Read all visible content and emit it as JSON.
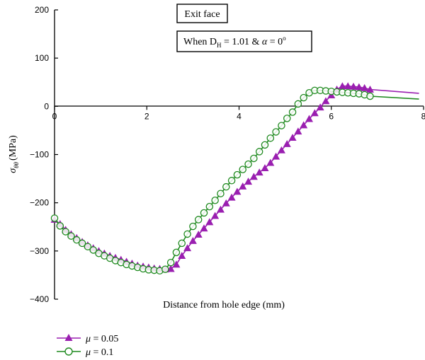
{
  "chart_data": {
    "type": "line",
    "xlabel": "Distance from hole edge (mm)",
    "ylabel": {
      "sigma": "σ",
      "sub": "θθ",
      "unit": "(MPa)"
    },
    "xlim": [
      0,
      8
    ],
    "ylim": [
      -400,
      200
    ],
    "xticks": [
      0,
      2,
      4,
      6,
      8
    ],
    "yticks": [
      200,
      100,
      0,
      -100,
      -200,
      -300,
      -400
    ],
    "ytick_labels": [
      "200",
      "100",
      "0",
      "−100",
      "−200",
      "−300",
      "−400"
    ],
    "grid": false,
    "legend_position": "bottom-left",
    "annotations": {
      "box1": "Exit face",
      "box2": {
        "prefix": "When D",
        "sub": "H",
        "middle": " = 1.01 & ",
        "alpha": "α",
        "suffix": " = 0",
        "sup": "o"
      }
    },
    "series": [
      {
        "name": "μ = 0.05",
        "mu": "μ",
        "value_text": " = 0.05",
        "color": "#9a1fb0",
        "marker": "triangle-filled",
        "x": [
          0,
          0.12,
          0.24,
          0.36,
          0.48,
          0.6,
          0.72,
          0.84,
          0.96,
          1.08,
          1.2,
          1.32,
          1.44,
          1.56,
          1.68,
          1.8,
          1.92,
          2.04,
          2.16,
          2.28,
          2.4,
          2.52,
          2.64,
          2.76,
          2.88,
          3.0,
          3.12,
          3.24,
          3.36,
          3.48,
          3.6,
          3.72,
          3.84,
          3.96,
          4.08,
          4.2,
          4.32,
          4.44,
          4.56,
          4.68,
          4.8,
          4.92,
          5.04,
          5.16,
          5.28,
          5.4,
          5.52,
          5.64,
          5.76,
          5.88,
          6.0,
          6.12,
          6.24,
          6.36,
          6.48,
          6.6,
          6.72,
          6.84,
          7.9
        ],
        "y": [
          -235,
          -244,
          -256,
          -265,
          -273,
          -281,
          -288,
          -294,
          -300,
          -305,
          -310,
          -314,
          -318,
          -322,
          -326,
          -330,
          -332,
          -334,
          -336,
          -337,
          -338,
          -337,
          -328,
          -310,
          -294,
          -279,
          -266,
          -253,
          -240,
          -227,
          -214,
          -201,
          -189,
          -177,
          -166,
          -156,
          -146,
          -137,
          -128,
          -117,
          -104,
          -91,
          -78,
          -65,
          -52,
          -39,
          -26,
          -14,
          -2,
          11,
          23,
          35,
          42,
          42,
          41,
          40,
          38,
          35,
          27
        ]
      },
      {
        "name": "μ = 0.1",
        "mu": "μ",
        "value_text": " = 0.1",
        "color": "#1f8a1f",
        "marker": "circle-open",
        "x": [
          0,
          0.12,
          0.24,
          0.36,
          0.48,
          0.6,
          0.72,
          0.84,
          0.96,
          1.08,
          1.2,
          1.32,
          1.44,
          1.56,
          1.68,
          1.8,
          1.92,
          2.04,
          2.16,
          2.28,
          2.4,
          2.52,
          2.64,
          2.76,
          2.88,
          3.0,
          3.12,
          3.24,
          3.36,
          3.48,
          3.6,
          3.72,
          3.84,
          3.96,
          4.08,
          4.2,
          4.32,
          4.44,
          4.56,
          4.68,
          4.8,
          4.92,
          5.04,
          5.16,
          5.28,
          5.4,
          5.52,
          5.64,
          5.76,
          5.88,
          6.0,
          6.12,
          6.24,
          6.36,
          6.48,
          6.6,
          6.72,
          6.84,
          7.9
        ],
        "y": [
          -232,
          -248,
          -260,
          -269,
          -277,
          -284,
          -291,
          -298,
          -305,
          -310,
          -315,
          -320,
          -324,
          -328,
          -331,
          -334,
          -337,
          -339,
          -340,
          -341,
          -338,
          -324,
          -303,
          -284,
          -265,
          -249,
          -235,
          -221,
          -208,
          -195,
          -181,
          -167,
          -154,
          -142,
          -131,
          -120,
          -108,
          -94,
          -80,
          -66,
          -53,
          -40,
          -25,
          -12,
          5,
          18,
          28,
          33,
          33,
          32,
          31,
          30,
          29,
          28,
          27,
          26,
          24,
          21,
          15
        ]
      }
    ]
  }
}
